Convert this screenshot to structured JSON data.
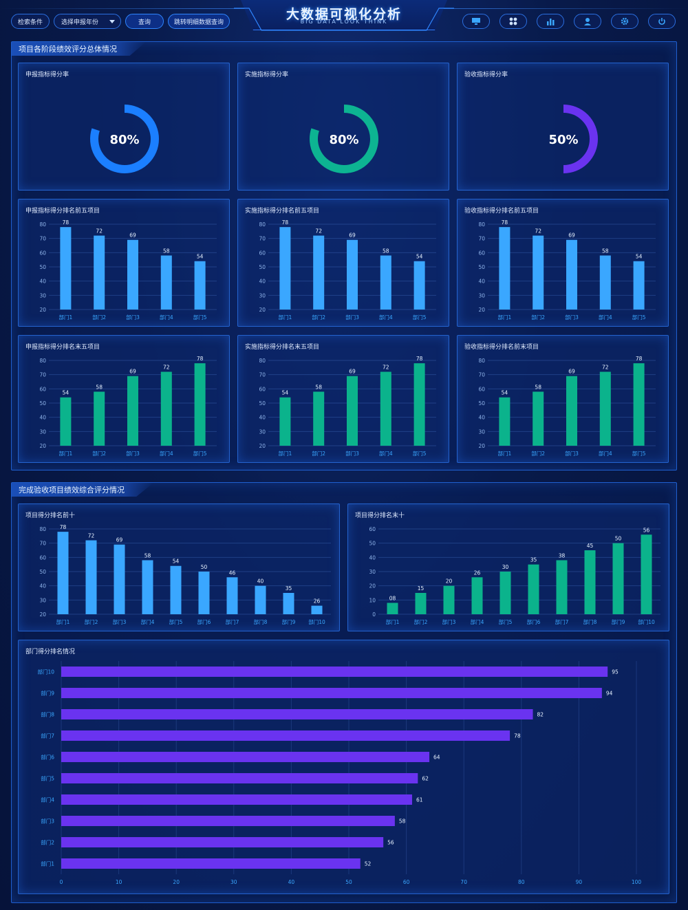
{
  "header": {
    "title": "大数据可视化分析",
    "subtitle": "BIG DATA LOOK THINK",
    "filter_label": "检索条件",
    "year_select": "选择申报年份",
    "query_button": "查询",
    "detail_button": "跳转明细数据查询",
    "icons": [
      "monitor-icon",
      "apps-icon",
      "chart-icon",
      "user-icon",
      "gear-icon",
      "power-icon"
    ]
  },
  "section1": {
    "title": "项目各阶段绩效评分总体情况"
  },
  "section2": {
    "title": "完成验收项目绩效综合评分情况"
  },
  "colors": {
    "blue": "#3aa7ff",
    "green": "#0bb38c",
    "purple": "#6a33f0",
    "ringBlue": "#1b7fff",
    "ringGreen": "#0db492"
  },
  "chart_data": [
    {
      "id": "g1",
      "type": "gauge",
      "title": "申报指标得分率",
      "value": 80,
      "label": "80%",
      "color": "#1b7fff"
    },
    {
      "id": "g2",
      "type": "gauge",
      "title": "实施指标得分率",
      "value": 80,
      "label": "80%",
      "color": "#0db492"
    },
    {
      "id": "g3",
      "type": "gauge",
      "title": "验收指标得分率",
      "value": 50,
      "label": "50%",
      "color": "#6a33f0"
    },
    {
      "id": "b1",
      "type": "bar",
      "title": "申报指标得分排名前五项目",
      "categories": [
        "部门1",
        "部门2",
        "部门3",
        "部门4",
        "部门5"
      ],
      "values": [
        78,
        72,
        69,
        58,
        54
      ],
      "ylim": [
        20,
        80
      ],
      "yticks": [
        20,
        30,
        40,
        50,
        60,
        70,
        80
      ],
      "color": "#3aa7ff"
    },
    {
      "id": "b2",
      "type": "bar",
      "title": "实施指标得分排名前五项目",
      "categories": [
        "部门1",
        "部门2",
        "部门3",
        "部门4",
        "部门5"
      ],
      "values": [
        78,
        72,
        69,
        58,
        54
      ],
      "ylim": [
        20,
        80
      ],
      "yticks": [
        20,
        30,
        40,
        50,
        60,
        70,
        80
      ],
      "color": "#3aa7ff"
    },
    {
      "id": "b3",
      "type": "bar",
      "title": "验收指标得分排名前五项目",
      "categories": [
        "部门1",
        "部门2",
        "部门3",
        "部门4",
        "部门5"
      ],
      "values": [
        78,
        72,
        69,
        58,
        54
      ],
      "ylim": [
        20,
        80
      ],
      "yticks": [
        20,
        30,
        40,
        50,
        60,
        70,
        80
      ],
      "color": "#3aa7ff"
    },
    {
      "id": "b4",
      "type": "bar",
      "title": "申报指标得分排名末五项目",
      "categories": [
        "部门1",
        "部门2",
        "部门3",
        "部门4",
        "部门5"
      ],
      "values": [
        54,
        58,
        69,
        72,
        78
      ],
      "ylim": [
        20,
        80
      ],
      "yticks": [
        20,
        30,
        40,
        50,
        60,
        70,
        80
      ],
      "color": "#0bb38c"
    },
    {
      "id": "b5",
      "type": "bar",
      "title": "实施指标得分排名末五项目",
      "categories": [
        "部门1",
        "部门2",
        "部门3",
        "部门4",
        "部门5"
      ],
      "values": [
        54,
        58,
        69,
        72,
        78
      ],
      "ylim": [
        20,
        80
      ],
      "yticks": [
        20,
        30,
        40,
        50,
        60,
        70,
        80
      ],
      "color": "#0bb38c"
    },
    {
      "id": "b6",
      "type": "bar",
      "title": "验收指标得分排名前末项目",
      "categories": [
        "部门1",
        "部门2",
        "部门3",
        "部门4",
        "部门5"
      ],
      "values": [
        54,
        58,
        69,
        72,
        78
      ],
      "ylim": [
        20,
        80
      ],
      "yticks": [
        20,
        30,
        40,
        50,
        60,
        70,
        80
      ],
      "color": "#0bb38c"
    },
    {
      "id": "b7",
      "type": "bar",
      "title": "项目得分排名前十",
      "categories": [
        "部门1",
        "部门2",
        "部门3",
        "部门4",
        "部门5",
        "部门6",
        "部门7",
        "部门8",
        "部门9",
        "部门10"
      ],
      "values": [
        78,
        72,
        69,
        58,
        54,
        50,
        46,
        40,
        35,
        26
      ],
      "ylim": [
        20,
        80
      ],
      "yticks": [
        20,
        30,
        40,
        50,
        60,
        70,
        80
      ],
      "color": "#3aa7ff"
    },
    {
      "id": "b8",
      "type": "bar",
      "title": "项目得分排名末十",
      "categories": [
        "部门1",
        "部门2",
        "部门3",
        "部门4",
        "部门5",
        "部门6",
        "部门7",
        "部门8",
        "部门9",
        "部门10"
      ],
      "values": [
        8,
        15,
        20,
        26,
        30,
        35,
        38,
        45,
        50,
        56
      ],
      "labels": [
        "08",
        "15",
        "20",
        "26",
        "30",
        "35",
        "38",
        "45",
        "50",
        "56"
      ],
      "ylim": [
        0,
        60
      ],
      "yticks": [
        0,
        10,
        20,
        30,
        40,
        50,
        60
      ],
      "color": "#0bb38c"
    },
    {
      "id": "h1",
      "type": "hbar",
      "title": "部门得分排名情况",
      "categories": [
        "部门10",
        "部门9",
        "部门8",
        "部门7",
        "部门6",
        "部门5",
        "部门4",
        "部门3",
        "部门2",
        "部门1"
      ],
      "values": [
        95,
        94,
        82,
        78,
        64,
        62,
        61,
        58,
        56,
        52
      ],
      "xlim": [
        0,
        100
      ],
      "xticks": [
        0,
        10,
        20,
        30,
        40,
        50,
        60,
        70,
        80,
        90,
        100
      ],
      "color": "#6a33f0"
    }
  ]
}
